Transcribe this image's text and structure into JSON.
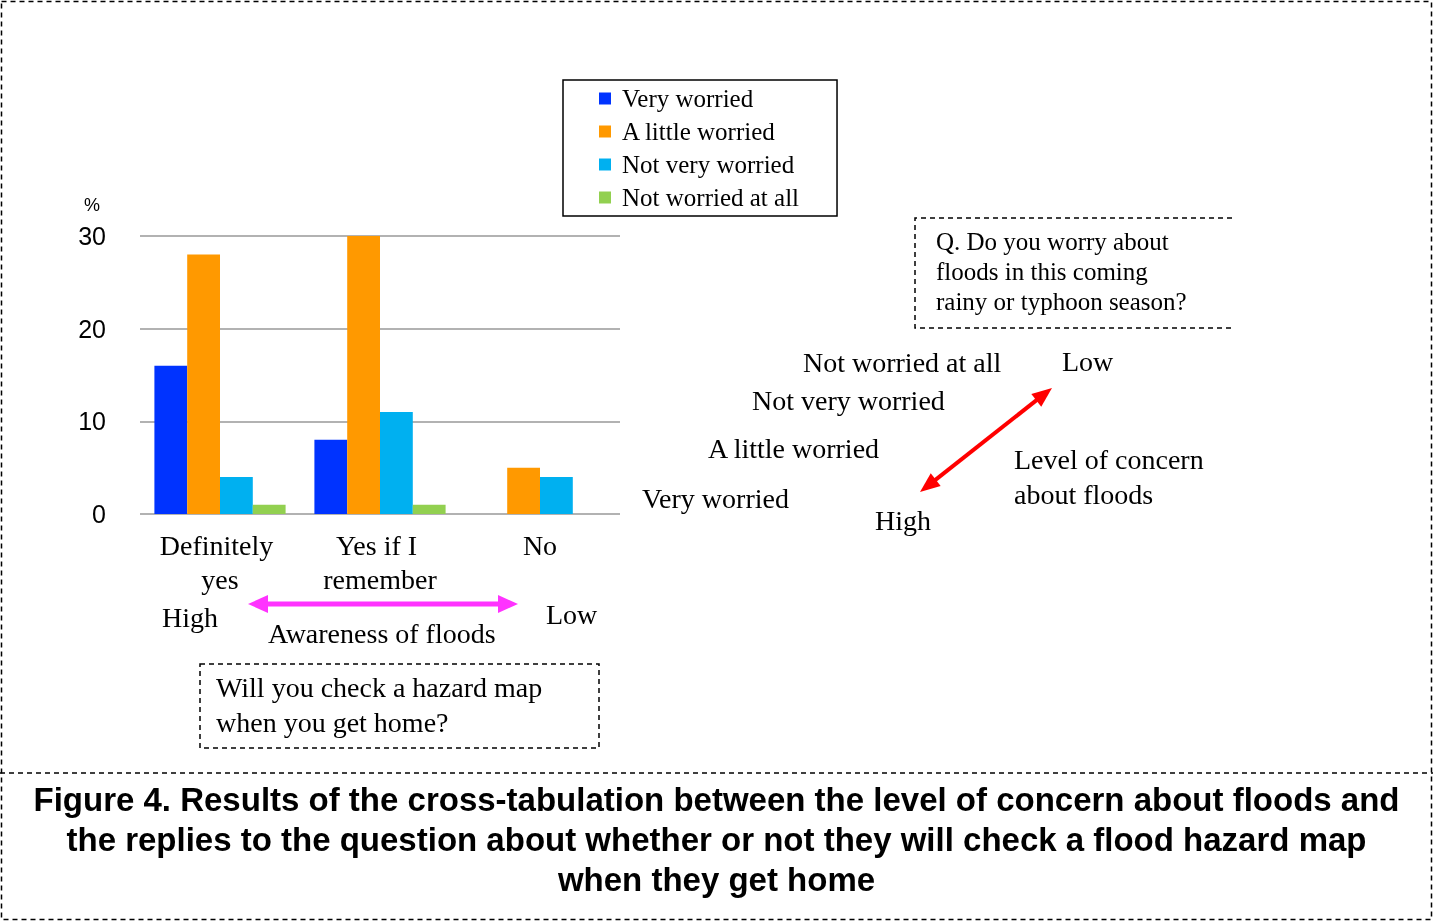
{
  "chart_data": {
    "type": "bar",
    "xlabel": "Will you check a hazard map when you get home?",
    "ylabel": "%",
    "annotations": [
      "High",
      "Awareness of floods",
      "Low",
      "Q. Do you worry about floods in this coming rainy or typhoon season?",
      "Low",
      "Level of concern about floods",
      "High",
      "Figure 4. Results of the cross-tabulation between the level of concern about floods and the replies to the question about whether or not they will check a flood hazard map when they get home"
    ],
    "categories": [
      "Definitely yes",
      "Yes if I remember",
      "No"
    ],
    "series": [
      {
        "name": "Very worried",
        "color": "#0033ff",
        "values": [
          16,
          8,
          0
        ]
      },
      {
        "name": "A little worried",
        "color": "#ff9900",
        "values": [
          28,
          30,
          5
        ]
      },
      {
        "name": "Not very worried",
        "color": "#00b0f0",
        "values": [
          4,
          11,
          4
        ]
      },
      {
        "name": "Not worried at all",
        "color": "#92d050",
        "values": [
          1,
          1,
          0
        ]
      }
    ],
    "ylim": [
      0,
      30
    ],
    "yticks": [
      0,
      10,
      20,
      30
    ],
    "grid": "y",
    "legend": "top right"
  }
}
